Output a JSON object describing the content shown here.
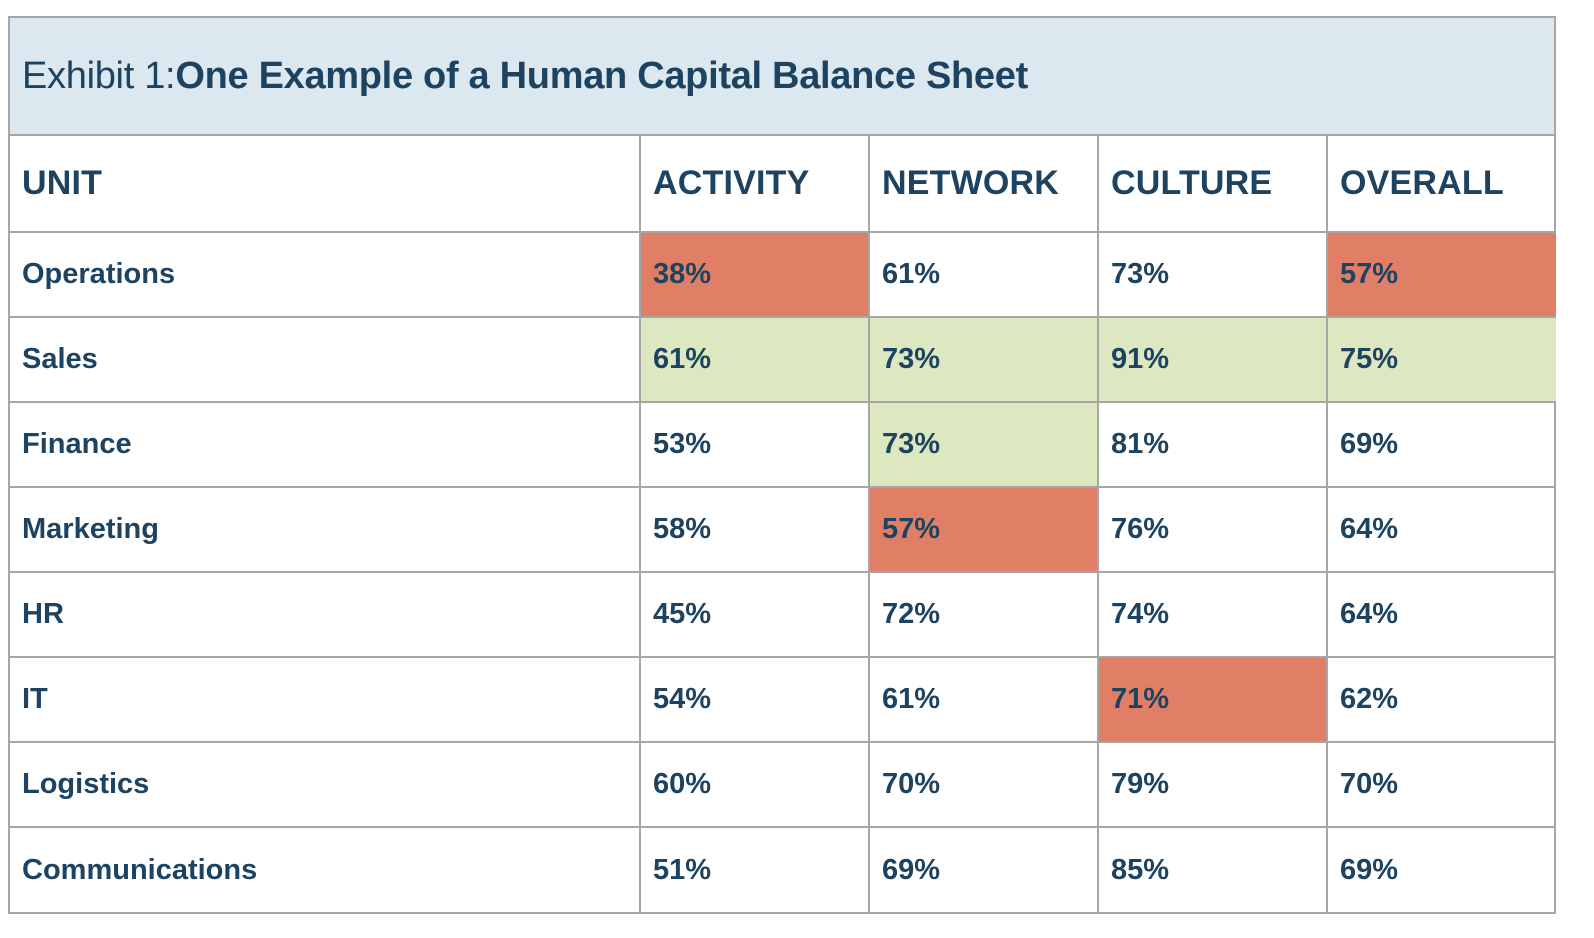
{
  "exhibit": {
    "prefix": "Exhibit 1: ",
    "title": "One Example of a Human Capital Balance Sheet"
  },
  "chart_data": {
    "type": "table",
    "title": "One Example of a Human Capital Balance Sheet",
    "columns": [
      "UNIT",
      "ACTIVITY",
      "NETWORK",
      "CULTURE",
      "OVERALL"
    ],
    "rows": [
      {
        "unit": "Operations",
        "values": [
          "38%",
          "61%",
          "73%",
          "57%"
        ],
        "highlight": [
          "red",
          "",
          "",
          "red"
        ]
      },
      {
        "unit": "Sales",
        "values": [
          "61%",
          "73%",
          "91%",
          "75%"
        ],
        "highlight": [
          "green",
          "green",
          "green",
          "green"
        ]
      },
      {
        "unit": "Finance",
        "values": [
          "53%",
          "73%",
          "81%",
          "69%"
        ],
        "highlight": [
          "",
          "green",
          "",
          ""
        ]
      },
      {
        "unit": "Marketing",
        "values": [
          "58%",
          "57%",
          "76%",
          "64%"
        ],
        "highlight": [
          "",
          "red",
          "",
          ""
        ]
      },
      {
        "unit": "HR",
        "values": [
          "45%",
          "72%",
          "74%",
          "64%"
        ],
        "highlight": [
          "",
          "",
          "",
          ""
        ]
      },
      {
        "unit": "IT",
        "values": [
          "54%",
          "61%",
          "71%",
          "62%"
        ],
        "highlight": [
          "",
          "",
          "red",
          ""
        ]
      },
      {
        "unit": "Logistics",
        "values": [
          "60%",
          "70%",
          "79%",
          "70%"
        ],
        "highlight": [
          "",
          "",
          "",
          ""
        ]
      },
      {
        "unit": "Communications",
        "values": [
          "51%",
          "69%",
          "85%",
          "69%"
        ],
        "highlight": [
          "",
          "",
          "",
          ""
        ]
      }
    ],
    "colors": {
      "red": "#e17f66",
      "green": "#dde8c0",
      "header_bg": "#dce8ef",
      "text": "#1d4361",
      "border": "#a6a6a6"
    }
  }
}
